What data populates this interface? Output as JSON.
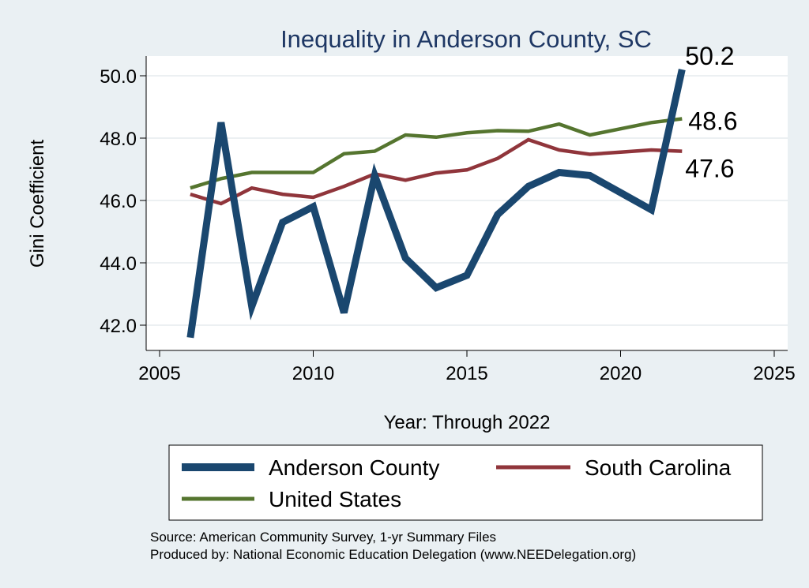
{
  "chart_data": {
    "type": "line",
    "title": "Inequality in Anderson County, SC",
    "xlabel": "Year: Through 2022",
    "ylabel": "Gini Coefficient",
    "xlim": [
      2005,
      2025
    ],
    "ylim": [
      41.2,
      50.6
    ],
    "x_ticks": [
      2005,
      2010,
      2015,
      2020,
      2025
    ],
    "y_ticks": [
      42.0,
      44.0,
      46.0,
      48.0,
      50.0
    ],
    "y_tick_labels": [
      "42.0",
      "44.0",
      "46.0",
      "48.0",
      "50.0"
    ],
    "grid": true,
    "x": [
      2006,
      2007,
      2008,
      2009,
      2010,
      2011,
      2012,
      2013,
      2014,
      2015,
      2016,
      2017,
      2018,
      2019,
      2020,
      2021,
      2022
    ],
    "series": [
      {
        "name": "Anderson County",
        "color": "#1a476f",
        "values": [
          41.6,
          48.5,
          42.6,
          45.3,
          45.8,
          42.4,
          46.8,
          44.15,
          43.2,
          43.6,
          45.55,
          46.45,
          46.9,
          46.8,
          46.25,
          45.7,
          50.2
        ],
        "end_label": "50.2"
      },
      {
        "name": "South Carolina",
        "color": "#90353b",
        "values": [
          46.2,
          45.9,
          46.4,
          46.2,
          46.1,
          46.45,
          46.85,
          46.65,
          46.88,
          46.98,
          47.35,
          47.95,
          47.62,
          47.48,
          47.55,
          47.62,
          47.58
        ],
        "end_label": "47.6"
      },
      {
        "name": "United States",
        "color": "#55752f",
        "values": [
          46.4,
          46.7,
          46.9,
          46.9,
          46.9,
          47.5,
          47.58,
          48.1,
          48.03,
          48.17,
          48.24,
          48.22,
          48.45,
          48.1,
          48.3,
          48.5,
          48.62
        ],
        "end_label": "48.6"
      }
    ]
  },
  "legend": {
    "items": [
      "Anderson County",
      "South Carolina",
      "United States"
    ]
  },
  "source": {
    "line1": "Source: American Community Survey, 1-yr Summary Files",
    "line2": "Produced by: National Economic Education Delegation (www.NEEDelegation.org)"
  }
}
